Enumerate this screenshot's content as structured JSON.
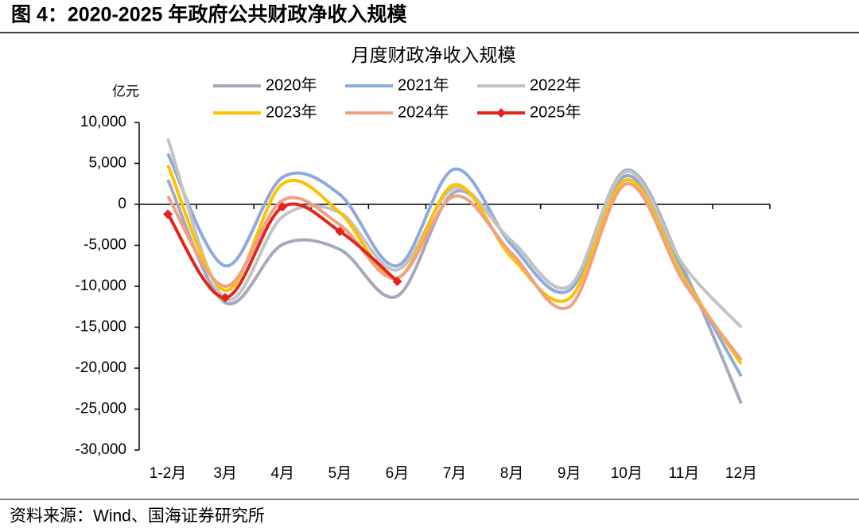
{
  "figure_title": "图 4：2020-2025 年政府公共财政净收入规模",
  "source": "资料来源：Wind、国海证券研究所",
  "chart_data": {
    "type": "line",
    "title": "月度财政净收入规模",
    "y_unit": "亿元",
    "smooth": true,
    "categories": [
      "1-2月",
      "3月",
      "4月",
      "5月",
      "6月",
      "7月",
      "8月",
      "9月",
      "10月",
      "11月",
      "12月"
    ],
    "series": [
      {
        "name": "2020年",
        "color": "#a5a9bd",
        "values": [
          3000,
          -12000,
          -4900,
          -5500,
          -11200,
          1500,
          -4500,
          -10000,
          4200,
          -8000,
          -24300
        ]
      },
      {
        "name": "2021年",
        "color": "#8eaadc",
        "values": [
          6200,
          -7500,
          3300,
          1200,
          -7500,
          4300,
          -5000,
          -10500,
          3500,
          -8500,
          -21000
        ]
      },
      {
        "name": "2022年",
        "color": "#c3c3c3",
        "values": [
          8000,
          -11500,
          -1500,
          -1000,
          -8000,
          2000,
          -4500,
          -10000,
          4000,
          -7500,
          -15000
        ]
      },
      {
        "name": "2023年",
        "color": "#ffc000",
        "values": [
          4800,
          -10500,
          2500,
          -1000,
          -9000,
          2400,
          -6500,
          -11500,
          3000,
          -9000,
          -19500
        ]
      },
      {
        "name": "2024年",
        "color": "#f0a183",
        "values": [
          1000,
          -10000,
          500,
          -2500,
          -9000,
          1000,
          -6000,
          -12500,
          2500,
          -9500,
          -19000
        ]
      },
      {
        "name": "2025年",
        "color": "#e3231c",
        "markers": true,
        "values": [
          -1200,
          -11400,
          -300,
          -3300,
          -9400,
          null,
          null,
          null,
          null,
          null,
          null
        ]
      }
    ],
    "ylim": [
      -30000,
      10000
    ],
    "yticks": [
      {
        "value": -30000,
        "label": "-30,000"
      },
      {
        "value": -25000,
        "label": "-25,000"
      },
      {
        "value": -20000,
        "label": "-20,000"
      },
      {
        "value": -15000,
        "label": "-15,000"
      },
      {
        "value": -10000,
        "label": "-10,000"
      },
      {
        "value": -5000,
        "label": "-5,000"
      },
      0,
      {
        "value": 5000,
        "label": "5,000"
      },
      {
        "value": 10000,
        "label": "10,000"
      }
    ],
    "grid": false
  }
}
